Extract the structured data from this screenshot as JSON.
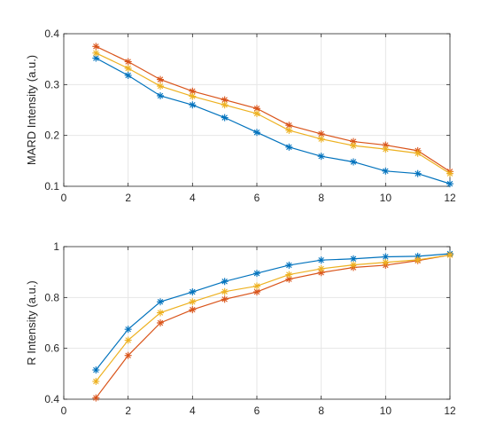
{
  "chart_data": [
    {
      "type": "line",
      "title": "",
      "xlabel": "",
      "ylabel": "MARD Intensity (a.u.)",
      "xlim": [
        0,
        12
      ],
      "ylim": [
        0.1,
        0.4
      ],
      "xticks": [
        0,
        2,
        4,
        6,
        8,
        10,
        12
      ],
      "yticks": [
        0.1,
        0.2,
        0.3,
        0.4
      ],
      "grid": true,
      "x": [
        1,
        2,
        3,
        4,
        5,
        6,
        7,
        8,
        9,
        10,
        11,
        12
      ],
      "series": [
        {
          "color": "#0072BD",
          "marker": "asterisk",
          "values": [
            0.352,
            0.318,
            0.278,
            0.26,
            0.235,
            0.206,
            0.177,
            0.159,
            0.148,
            0.13,
            0.125,
            0.105
          ]
        },
        {
          "color": "#D95319",
          "marker": "asterisk",
          "values": [
            0.375,
            0.345,
            0.31,
            0.287,
            0.27,
            0.253,
            0.22,
            0.203,
            0.188,
            0.181,
            0.17,
            0.129
          ]
        },
        {
          "color": "#EDB120",
          "marker": "asterisk",
          "values": [
            0.362,
            0.332,
            0.297,
            0.277,
            0.26,
            0.243,
            0.21,
            0.193,
            0.18,
            0.173,
            0.165,
            0.125
          ]
        }
      ]
    },
    {
      "type": "line",
      "title": "",
      "xlabel": "",
      "ylabel": "R Intensity (a.u.)",
      "xlim": [
        0,
        12
      ],
      "ylim": [
        0.4,
        1.0
      ],
      "xticks": [
        0,
        2,
        4,
        6,
        8,
        10,
        12
      ],
      "yticks": [
        0.4,
        0.6,
        0.8,
        1.0
      ],
      "grid": true,
      "x": [
        1,
        2,
        3,
        4,
        5,
        6,
        7,
        8,
        9,
        10,
        11,
        12
      ],
      "series": [
        {
          "color": "#0072BD",
          "marker": "asterisk",
          "values": [
            0.515,
            0.675,
            0.783,
            0.822,
            0.863,
            0.895,
            0.927,
            0.947,
            0.952,
            0.96,
            0.962,
            0.972
          ]
        },
        {
          "color": "#D95319",
          "marker": "asterisk",
          "values": [
            0.405,
            0.572,
            0.7,
            0.752,
            0.793,
            0.822,
            0.872,
            0.898,
            0.918,
            0.927,
            0.945,
            0.967
          ]
        },
        {
          "color": "#EDB120",
          "marker": "asterisk",
          "values": [
            0.47,
            0.632,
            0.74,
            0.783,
            0.823,
            0.845,
            0.89,
            0.913,
            0.928,
            0.938,
            0.948,
            0.967
          ]
        }
      ]
    }
  ]
}
